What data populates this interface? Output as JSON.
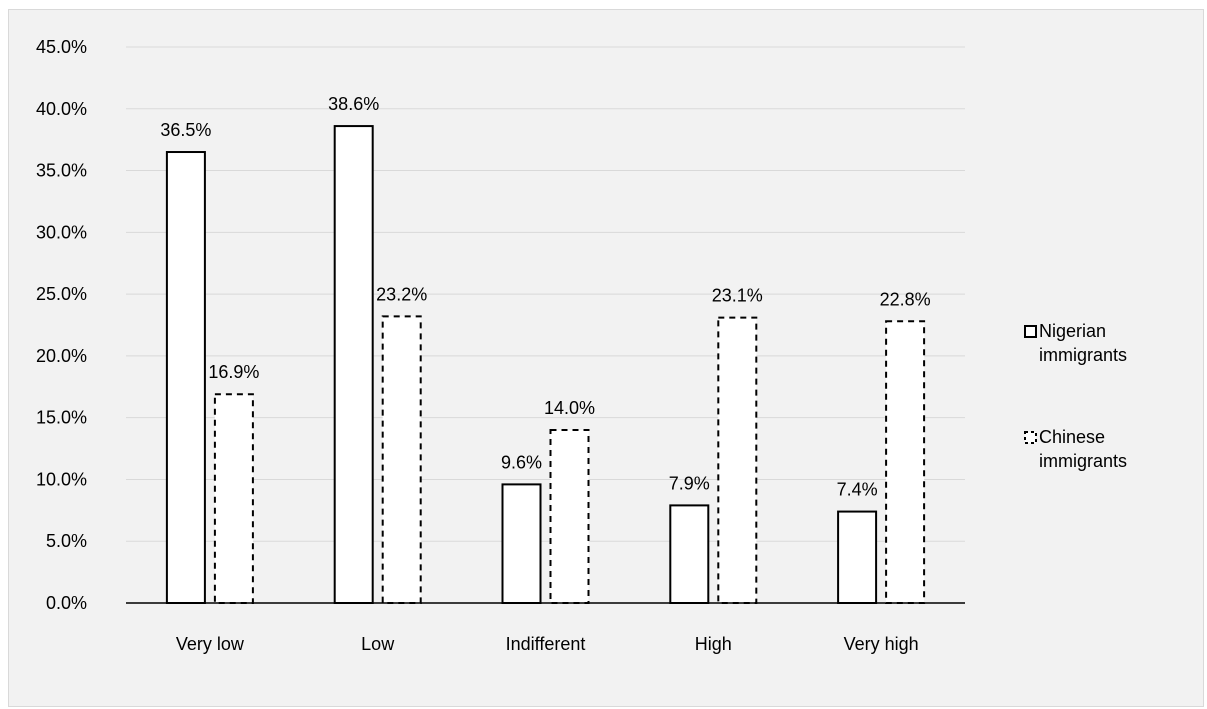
{
  "chart_data": {
    "type": "bar",
    "title": "",
    "xlabel": "",
    "ylabel": "",
    "categories": [
      "Very low",
      "Low",
      "Indifferent",
      "High",
      "Very high"
    ],
    "series": [
      {
        "name": "Nigerian immigrants",
        "values": [
          36.5,
          38.6,
          9.6,
          7.9,
          7.4
        ],
        "style": "solid"
      },
      {
        "name": "Chinese immigrants",
        "values": [
          16.9,
          23.2,
          14.0,
          23.1,
          22.8
        ],
        "style": "dashed"
      }
    ],
    "ylim": [
      0,
      45
    ],
    "yticks": [
      "0.0%",
      "5.0%",
      "10.0%",
      "15.0%",
      "20.0%",
      "25.0%",
      "30.0%",
      "35.0%",
      "40.0%",
      "45.0%"
    ],
    "data_labels": [
      [
        "36.5%",
        "38.6%",
        "9.6%",
        "7.9%",
        "7.4%"
      ],
      [
        "16.9%",
        "23.2%",
        "14.0%",
        "23.1%",
        "22.8%"
      ]
    ],
    "legend": {
      "position": "right",
      "lines": [
        [
          "Nigerian",
          "immigrants"
        ],
        [
          "Chinese",
          "immigrants"
        ]
      ]
    },
    "grid": true,
    "colors": {
      "background": "#f2f2f2",
      "gridline": "#d9d9d9",
      "bar_stroke": "#000000",
      "bar_fill": "#ffffff"
    }
  }
}
